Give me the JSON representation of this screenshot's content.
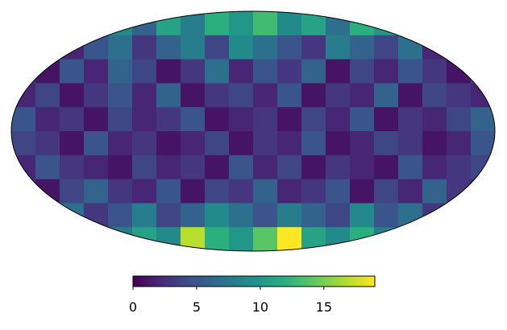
{
  "chart_data": {
    "type": "mollweide",
    "clim": [
      0,
      19
    ],
    "colorbar_ticks": [
      0,
      5,
      10,
      15
    ],
    "values": [
      [
        5,
        8,
        3,
        7,
        9,
        6,
        11,
        8,
        12,
        10,
        13,
        9,
        11,
        7,
        12,
        10,
        6,
        8,
        4,
        7
      ],
      [
        4,
        6,
        2,
        5,
        7,
        3,
        6,
        8,
        4,
        9,
        7,
        5,
        3,
        8,
        6,
        4,
        7,
        2,
        5,
        3
      ],
      [
        3,
        1,
        5,
        2,
        6,
        4,
        1,
        3,
        7,
        2,
        5,
        3,
        6,
        1,
        4,
        2,
        5,
        3,
        1,
        4
      ],
      [
        2,
        4,
        1,
        3,
        5,
        2,
        6,
        1,
        3,
        4,
        2,
        5,
        1,
        3,
        2,
        6,
        1,
        4,
        3,
        2
      ],
      [
        5,
        2,
        3,
        1,
        4,
        2,
        3,
        5,
        1,
        2,
        3,
        1,
        4,
        2,
        5,
        1,
        3,
        2,
        4,
        6
      ],
      [
        4,
        3,
        1,
        5,
        2,
        3,
        1,
        2,
        4,
        1,
        3,
        2,
        5,
        1,
        2,
        4,
        3,
        1,
        2,
        5
      ],
      [
        2,
        5,
        3,
        2,
        1,
        4,
        2,
        3,
        1,
        5,
        2,
        4,
        1,
        3,
        2,
        1,
        5,
        2,
        3,
        4
      ],
      [
        3,
        1,
        4,
        6,
        3,
        2,
        5,
        1,
        4,
        3,
        6,
        2,
        3,
        5,
        1,
        4,
        2,
        6,
        3,
        2
      ],
      [
        6,
        4,
        7,
        3,
        5,
        8,
        4,
        6,
        9,
        7,
        5,
        8,
        6,
        4,
        9,
        5,
        7,
        3,
        8,
        5
      ],
      [
        7,
        9,
        6,
        10,
        8,
        11,
        9,
        17,
        12,
        10,
        14,
        19,
        11,
        9,
        12,
        8,
        10,
        7,
        9,
        6
      ]
    ]
  }
}
